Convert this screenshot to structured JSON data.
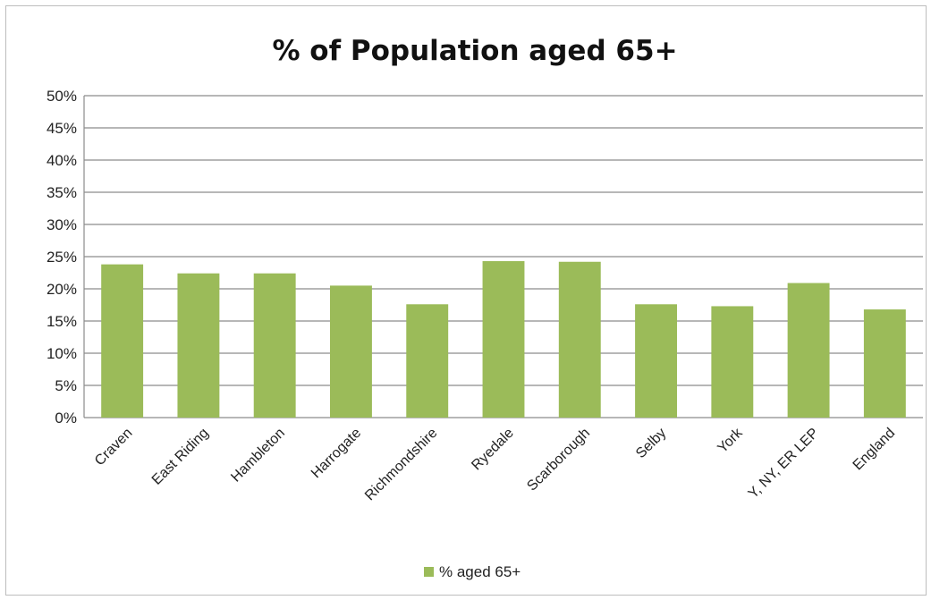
{
  "chart_data": {
    "type": "bar",
    "title": "% of Population aged 65+",
    "categories": [
      "Craven",
      "East Riding",
      "Hambleton",
      "Harrogate",
      "Richmondshire",
      "Ryedale",
      "Scarborough",
      "Selby",
      "York",
      "Y, NY, ER LEP",
      "England"
    ],
    "series": [
      {
        "name": "% aged 65+",
        "values": [
          23.8,
          22.4,
          22.4,
          20.5,
          17.6,
          24.3,
          24.2,
          17.6,
          17.3,
          20.9,
          16.8
        ]
      }
    ],
    "ylim": [
      0,
      50
    ],
    "yticks": [
      "0%",
      "5%",
      "10%",
      "15%",
      "20%",
      "25%",
      "30%",
      "35%",
      "40%",
      "45%",
      "50%"
    ],
    "grid": true,
    "legend_position": "bottom",
    "colors": {
      "bar": "#9bbb59",
      "grid": "#8c8c8c"
    }
  }
}
